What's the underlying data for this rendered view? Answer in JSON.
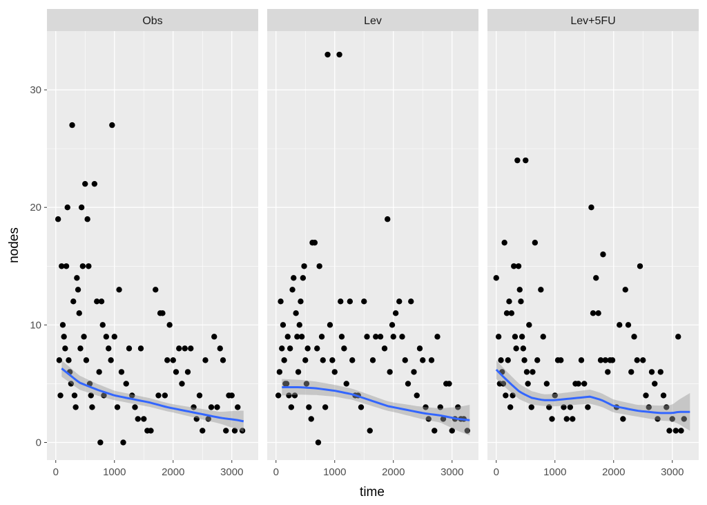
{
  "chart_data": {
    "type": "scatter",
    "facet_by": "treatment",
    "xlabel": "time",
    "ylabel": "nodes",
    "xlim": [
      -150,
      3450
    ],
    "ylim": [
      -1.5,
      35
    ],
    "x_ticks": [
      "0",
      "1000",
      "2000",
      "3000"
    ],
    "x_tick_values": [
      0,
      1000,
      2000,
      3000
    ],
    "y_ticks": [
      "0",
      "10",
      "20",
      "30"
    ],
    "y_tick_values": [
      0,
      10,
      20,
      30
    ],
    "grid": true,
    "smooth": "loess with confidence band",
    "colors": {
      "panel_bg": "#ebebeb",
      "strip_bg": "#d9d9d9",
      "grid": "#ffffff",
      "point": "#000000",
      "smooth_line": "#3366ff",
      "ci_band": "#999999"
    },
    "panels": [
      {
        "name": "Obs",
        "points": [
          [
            40,
            19
          ],
          [
            60,
            7
          ],
          [
            80,
            4
          ],
          [
            100,
            15
          ],
          [
            120,
            10
          ],
          [
            140,
            9
          ],
          [
            160,
            8
          ],
          [
            180,
            15
          ],
          [
            200,
            20
          ],
          [
            220,
            7
          ],
          [
            240,
            6
          ],
          [
            260,
            5
          ],
          [
            280,
            27
          ],
          [
            300,
            12
          ],
          [
            320,
            4
          ],
          [
            340,
            3
          ],
          [
            360,
            14
          ],
          [
            380,
            13
          ],
          [
            400,
            11
          ],
          [
            420,
            8
          ],
          [
            440,
            20
          ],
          [
            460,
            15
          ],
          [
            480,
            9
          ],
          [
            500,
            22
          ],
          [
            520,
            7
          ],
          [
            540,
            19
          ],
          [
            560,
            15
          ],
          [
            580,
            5
          ],
          [
            600,
            4
          ],
          [
            620,
            3
          ],
          [
            660,
            22
          ],
          [
            700,
            12
          ],
          [
            740,
            6
          ],
          [
            760,
            0
          ],
          [
            780,
            12
          ],
          [
            800,
            10
          ],
          [
            820,
            4
          ],
          [
            860,
            9
          ],
          [
            900,
            8
          ],
          [
            940,
            7
          ],
          [
            960,
            27
          ],
          [
            1000,
            9
          ],
          [
            1050,
            3
          ],
          [
            1080,
            13
          ],
          [
            1120,
            6
          ],
          [
            1150,
            0
          ],
          [
            1200,
            5
          ],
          [
            1250,
            8
          ],
          [
            1300,
            4
          ],
          [
            1350,
            3
          ],
          [
            1400,
            2
          ],
          [
            1450,
            8
          ],
          [
            1500,
            2
          ],
          [
            1560,
            1
          ],
          [
            1620,
            1
          ],
          [
            1700,
            13
          ],
          [
            1750,
            4
          ],
          [
            1780,
            11
          ],
          [
            1820,
            11
          ],
          [
            1860,
            4
          ],
          [
            1900,
            7
          ],
          [
            1940,
            10
          ],
          [
            2000,
            7
          ],
          [
            2050,
            6
          ],
          [
            2100,
            8
          ],
          [
            2150,
            5
          ],
          [
            2200,
            8
          ],
          [
            2250,
            6
          ],
          [
            2300,
            8
          ],
          [
            2350,
            3
          ],
          [
            2400,
            2
          ],
          [
            2450,
            4
          ],
          [
            2500,
            1
          ],
          [
            2550,
            7
          ],
          [
            2600,
            2
          ],
          [
            2650,
            3
          ],
          [
            2700,
            9
          ],
          [
            2750,
            3
          ],
          [
            2800,
            8
          ],
          [
            2850,
            7
          ],
          [
            2900,
            1
          ],
          [
            2950,
            4
          ],
          [
            3000,
            4
          ],
          [
            3050,
            1
          ],
          [
            3100,
            3
          ],
          [
            3180,
            1
          ]
        ],
        "smooth": [
          [
            100,
            6.3
          ],
          [
            400,
            5.1
          ],
          [
            700,
            4.5
          ],
          [
            1000,
            4.0
          ],
          [
            1300,
            3.7
          ],
          [
            1600,
            3.4
          ],
          [
            1900,
            3.0
          ],
          [
            2200,
            2.7
          ],
          [
            2500,
            2.4
          ],
          [
            2800,
            2.1
          ],
          [
            3100,
            1.9
          ],
          [
            3200,
            1.8
          ]
        ],
        "ci_width": [
          [
            100,
            0.7
          ],
          [
            1000,
            0.4
          ],
          [
            2000,
            0.35
          ],
          [
            2800,
            0.5
          ],
          [
            3200,
            0.9
          ]
        ]
      },
      {
        "name": "Lev",
        "points": [
          [
            40,
            4
          ],
          [
            60,
            6
          ],
          [
            80,
            12
          ],
          [
            100,
            8
          ],
          [
            120,
            10
          ],
          [
            140,
            7
          ],
          [
            160,
            5
          ],
          [
            180,
            5
          ],
          [
            200,
            9
          ],
          [
            220,
            4
          ],
          [
            240,
            8
          ],
          [
            260,
            3
          ],
          [
            280,
            13
          ],
          [
            300,
            14
          ],
          [
            320,
            4
          ],
          [
            340,
            11
          ],
          [
            360,
            9
          ],
          [
            380,
            6
          ],
          [
            400,
            10
          ],
          [
            420,
            12
          ],
          [
            440,
            9
          ],
          [
            460,
            14
          ],
          [
            480,
            15
          ],
          [
            500,
            7
          ],
          [
            520,
            5
          ],
          [
            540,
            8
          ],
          [
            560,
            3
          ],
          [
            600,
            2
          ],
          [
            620,
            17
          ],
          [
            660,
            17
          ],
          [
            700,
            8
          ],
          [
            720,
            0
          ],
          [
            740,
            15
          ],
          [
            780,
            9
          ],
          [
            800,
            7
          ],
          [
            840,
            3
          ],
          [
            880,
            33
          ],
          [
            920,
            10
          ],
          [
            960,
            7
          ],
          [
            1000,
            6
          ],
          [
            1080,
            33
          ],
          [
            1100,
            12
          ],
          [
            1120,
            9
          ],
          [
            1160,
            8
          ],
          [
            1200,
            5
          ],
          [
            1260,
            12
          ],
          [
            1300,
            7
          ],
          [
            1350,
            4
          ],
          [
            1400,
            4
          ],
          [
            1450,
            3
          ],
          [
            1500,
            12
          ],
          [
            1550,
            9
          ],
          [
            1600,
            1
          ],
          [
            1650,
            7
          ],
          [
            1700,
            9
          ],
          [
            1780,
            9
          ],
          [
            1850,
            8
          ],
          [
            1900,
            19
          ],
          [
            1940,
            6
          ],
          [
            1980,
            10
          ],
          [
            2000,
            9
          ],
          [
            2040,
            11
          ],
          [
            2100,
            12
          ],
          [
            2150,
            9
          ],
          [
            2200,
            7
          ],
          [
            2250,
            5
          ],
          [
            2300,
            12
          ],
          [
            2350,
            6
          ],
          [
            2400,
            4
          ],
          [
            2450,
            8
          ],
          [
            2500,
            7
          ],
          [
            2550,
            3
          ],
          [
            2600,
            2
          ],
          [
            2650,
            7
          ],
          [
            2700,
            1
          ],
          [
            2750,
            9
          ],
          [
            2800,
            3
          ],
          [
            2850,
            2
          ],
          [
            2900,
            5
          ],
          [
            2950,
            5
          ],
          [
            3000,
            1
          ],
          [
            3050,
            2
          ],
          [
            3100,
            3
          ],
          [
            3150,
            2
          ],
          [
            3200,
            2
          ],
          [
            3260,
            1
          ]
        ],
        "smooth": [
          [
            100,
            4.7
          ],
          [
            400,
            4.7
          ],
          [
            700,
            4.6
          ],
          [
            1000,
            4.4
          ],
          [
            1300,
            4.1
          ],
          [
            1600,
            3.6
          ],
          [
            1900,
            3.1
          ],
          [
            2200,
            2.8
          ],
          [
            2500,
            2.5
          ],
          [
            2800,
            2.3
          ],
          [
            3100,
            2.0
          ],
          [
            3300,
            1.9
          ]
        ],
        "ci_width": [
          [
            100,
            0.7
          ],
          [
            1000,
            0.5
          ],
          [
            2000,
            0.4
          ],
          [
            2800,
            0.6
          ],
          [
            3300,
            1.3
          ]
        ]
      },
      {
        "name": "Lev+5FU",
        "points": [
          [
            0,
            14
          ],
          [
            40,
            9
          ],
          [
            60,
            5
          ],
          [
            80,
            7
          ],
          [
            100,
            6
          ],
          [
            120,
            5
          ],
          [
            140,
            17
          ],
          [
            160,
            4
          ],
          [
            180,
            11
          ],
          [
            200,
            7
          ],
          [
            220,
            12
          ],
          [
            240,
            3
          ],
          [
            260,
            11
          ],
          [
            280,
            4
          ],
          [
            300,
            15
          ],
          [
            320,
            9
          ],
          [
            340,
            8
          ],
          [
            360,
            24
          ],
          [
            380,
            15
          ],
          [
            400,
            13
          ],
          [
            420,
            12
          ],
          [
            440,
            9
          ],
          [
            460,
            8
          ],
          [
            480,
            7
          ],
          [
            500,
            24
          ],
          [
            520,
            6
          ],
          [
            540,
            5
          ],
          [
            560,
            10
          ],
          [
            600,
            3
          ],
          [
            620,
            6
          ],
          [
            660,
            17
          ],
          [
            700,
            7
          ],
          [
            760,
            13
          ],
          [
            800,
            9
          ],
          [
            860,
            5
          ],
          [
            900,
            3
          ],
          [
            950,
            2
          ],
          [
            1000,
            4
          ],
          [
            1050,
            7
          ],
          [
            1100,
            7
          ],
          [
            1150,
            3
          ],
          [
            1200,
            2
          ],
          [
            1260,
            3
          ],
          [
            1300,
            2
          ],
          [
            1350,
            5
          ],
          [
            1400,
            5
          ],
          [
            1450,
            7
          ],
          [
            1500,
            5
          ],
          [
            1560,
            3
          ],
          [
            1620,
            20
          ],
          [
            1650,
            11
          ],
          [
            1700,
            14
          ],
          [
            1740,
            11
          ],
          [
            1780,
            7
          ],
          [
            1820,
            16
          ],
          [
            1860,
            7
          ],
          [
            1900,
            6
          ],
          [
            1940,
            7
          ],
          [
            1980,
            7
          ],
          [
            2050,
            3
          ],
          [
            2100,
            10
          ],
          [
            2160,
            2
          ],
          [
            2200,
            13
          ],
          [
            2250,
            10
          ],
          [
            2300,
            6
          ],
          [
            2350,
            9
          ],
          [
            2400,
            7
          ],
          [
            2450,
            15
          ],
          [
            2500,
            7
          ],
          [
            2550,
            4
          ],
          [
            2600,
            3
          ],
          [
            2650,
            6
          ],
          [
            2700,
            5
          ],
          [
            2750,
            2
          ],
          [
            2800,
            6
          ],
          [
            2850,
            4
          ],
          [
            2900,
            3
          ],
          [
            2950,
            1
          ],
          [
            3000,
            2
          ],
          [
            3060,
            1
          ],
          [
            3100,
            9
          ],
          [
            3150,
            1
          ],
          [
            3200,
            2
          ]
        ],
        "smooth": [
          [
            0,
            6.2
          ],
          [
            200,
            5.2
          ],
          [
            400,
            4.3
          ],
          [
            600,
            3.8
          ],
          [
            800,
            3.6
          ],
          [
            1000,
            3.6
          ],
          [
            1200,
            3.7
          ],
          [
            1400,
            3.8
          ],
          [
            1600,
            3.9
          ],
          [
            1800,
            3.6
          ],
          [
            2000,
            3.1
          ],
          [
            2200,
            2.9
          ],
          [
            2400,
            2.7
          ],
          [
            2600,
            2.6
          ],
          [
            2800,
            2.5
          ],
          [
            3000,
            2.5
          ],
          [
            3100,
            2.6
          ],
          [
            3300,
            2.6
          ]
        ],
        "ci_width": [
          [
            0,
            0.8
          ],
          [
            800,
            0.5
          ],
          [
            1600,
            0.6
          ],
          [
            2400,
            0.5
          ],
          [
            3000,
            0.7
          ],
          [
            3300,
            1.6
          ]
        ]
      }
    ]
  }
}
